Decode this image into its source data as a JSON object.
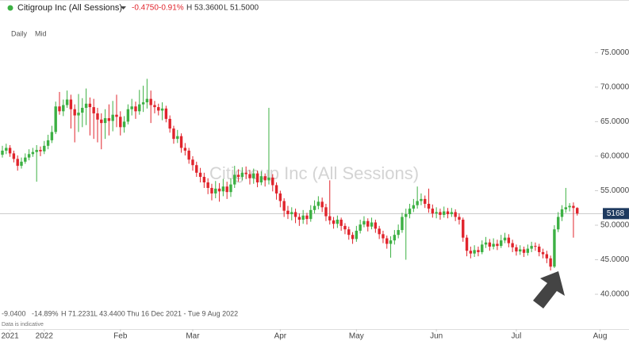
{
  "header": {
    "title": "Citigroup Inc (All Sessions)",
    "change": "-0.4750",
    "change_pct": "-0.91%",
    "high": "H 53.3600",
    "low": "L 51.5000"
  },
  "toolbar": {
    "interval": "Daily",
    "price_type": "Mid"
  },
  "footer": {
    "change": "-9.0400",
    "change_pct": "-14.89%",
    "high": "H 71.2231",
    "low": "L 43.4400",
    "range": "Thu 16 Dec 2021 - Tue 9 Aug 2022",
    "note": "Data is indicative"
  },
  "chart_data": {
    "type": "candlestick",
    "watermark": "Citigroup Inc (All Sessions)",
    "up_color": "#3cb043",
    "down_color": "#e0242c",
    "xlim": [
      -0.625,
      164.6
    ],
    "xticks": [
      {
        "value": 2,
        "label": "2021"
      },
      {
        "value": 11,
        "label": "2022"
      },
      {
        "value": 31,
        "label": "Feb"
      },
      {
        "value": 50,
        "label": "Mar"
      },
      {
        "value": 73,
        "label": "Apr"
      },
      {
        "value": 93,
        "label": "May"
      },
      {
        "value": 114,
        "label": "Jun"
      },
      {
        "value": 135,
        "label": "Jul"
      },
      {
        "value": 157,
        "label": "Aug"
      }
    ],
    "ylim": [
      37.25,
      79.4
    ],
    "yticks": [
      {
        "value": 40,
        "label": "40.0000"
      },
      {
        "value": 45,
        "label": "45.0000"
      },
      {
        "value": 50,
        "label": "50.0000"
      },
      {
        "value": 55,
        "label": "55.0000"
      },
      {
        "value": 60,
        "label": "60.0000"
      },
      {
        "value": 65,
        "label": "65.0000"
      },
      {
        "value": 70,
        "label": "70.0000"
      },
      {
        "value": 75,
        "label": "75.0000"
      }
    ],
    "last_price": {
      "value": 51.68,
      "label": "5168"
    },
    "open": [
      60.2,
      60.8,
      61.2,
      60.4,
      59.6,
      58.6,
      59.2,
      59.8,
      60.3,
      60.6,
      60.9,
      60.7,
      61.5,
      62.3,
      63.5,
      67.2,
      66.5,
      67.4,
      68.2,
      66.8,
      65.9,
      66.3,
      67.0,
      67.6,
      67.1,
      66.2,
      65.3,
      64.8,
      65.5,
      65.1,
      66.0,
      65.7,
      64.2,
      65.0,
      66.8,
      67.2,
      66.5,
      67.5,
      67.8,
      68.3,
      67.4,
      67.1,
      66.6,
      66.9,
      65.4,
      64.0,
      62.5,
      62.9,
      61.2,
      60.8,
      59.5,
      58.7,
      57.6,
      57.0,
      56.2,
      55.4,
      54.6,
      55.3,
      54.9,
      55.6,
      54.8,
      55.9,
      57.3,
      57.0,
      57.6,
      57.4,
      56.8,
      57.5,
      56.2,
      57.1,
      56.5,
      56.9,
      55.8,
      54.6,
      53.5,
      52.1,
      51.6,
      51.9,
      51.2,
      50.8,
      51.4,
      50.9,
      52.2,
      52.8,
      53.4,
      52.6,
      51.3,
      50.7,
      50.2,
      50.8,
      49.9,
      49.4,
      48.6,
      48.0,
      49.2,
      50.1,
      50.6,
      49.8,
      50.4,
      49.5,
      48.7,
      48.1,
      47.3,
      47.8,
      48.6,
      49.3,
      51.2,
      51.6,
      52.4,
      52.9,
      53.5,
      53.8,
      53.1,
      52.4,
      51.7,
      51.9,
      51.5,
      52.0,
      51.6,
      51.9,
      51.2,
      50.8,
      48.2,
      46.3,
      45.9,
      46.4,
      46.1,
      47.2,
      47.5,
      46.9,
      47.3,
      47.0,
      47.8,
      48.2,
      47.4,
      46.8,
      46.2,
      46.5,
      46.0,
      46.6,
      47.0,
      46.9,
      46.1,
      45.8,
      45.2,
      44.0,
      49.4,
      51.2,
      52.3,
      52.6,
      52.8,
      52.5
    ],
    "high": [
      61.5,
      61.8,
      61.6,
      60.8,
      60.1,
      59.8,
      60.4,
      61.0,
      61.2,
      61.6,
      61.4,
      62.2,
      63.1,
      64.4,
      67.9,
      69.3,
      68.2,
      69.5,
      68.9,
      67.5,
      69.0,
      68.4,
      69.8,
      68.5,
      68.3,
      67.0,
      66.2,
      66.8,
      67.5,
      68.0,
      68.9,
      66.5,
      65.8,
      67.5,
      68.3,
      67.9,
      69.6,
      70.2,
      71.2,
      69.5,
      68.0,
      67.6,
      67.8,
      67.3,
      65.9,
      64.4,
      63.8,
      63.3,
      61.9,
      61.2,
      60.0,
      59.2,
      58.3,
      57.6,
      56.8,
      56.0,
      56.4,
      56.1,
      56.7,
      56.3,
      56.8,
      58.6,
      58.1,
      58.4,
      58.5,
      58.0,
      58.2,
      57.9,
      57.8,
      57.5,
      67.0,
      57.4,
      56.2,
      55.0,
      53.9,
      52.8,
      52.6,
      52.4,
      51.7,
      52.2,
      51.8,
      52.9,
      53.6,
      54.2,
      54.0,
      53.1,
      56.5,
      51.2,
      51.4,
      51.1,
      50.3,
      49.8,
      49.0,
      49.9,
      50.8,
      51.3,
      51.0,
      51.1,
      50.8,
      49.9,
      49.2,
      48.5,
      48.4,
      49.3,
      50.1,
      51.8,
      52.4,
      53.1,
      53.8,
      55.6,
      54.6,
      54.3,
      55.3,
      53.0,
      52.6,
      52.4,
      52.7,
      52.5,
      52.5,
      52.3,
      51.7,
      51.1,
      48.6,
      46.9,
      47.1,
      46.9,
      47.8,
      48.3,
      48.0,
      48.1,
      47.9,
      48.6,
      48.9,
      48.7,
      47.9,
      47.2,
      47.1,
      46.9,
      47.2,
      47.6,
      47.5,
      47.3,
      46.6,
      46.3,
      45.6,
      50.0,
      51.9,
      52.9,
      55.4,
      53.2,
      53.3,
      52.6
    ],
    "low": [
      59.8,
      60.3,
      59.9,
      59.1,
      57.9,
      58.2,
      58.9,
      59.4,
      59.9,
      56.3,
      60.0,
      60.3,
      61.0,
      61.9,
      63.2,
      66.0,
      65.8,
      67.0,
      64.0,
      62.0,
      63.5,
      64.2,
      64.5,
      63.0,
      62.5,
      62.0,
      61.0,
      62.5,
      63.0,
      63.6,
      64.2,
      63.0,
      63.4,
      64.6,
      65.9,
      65.4,
      66.0,
      66.4,
      66.9,
      64.8,
      66.2,
      65.9,
      65.2,
      64.9,
      63.4,
      61.8,
      61.9,
      60.5,
      60.1,
      58.9,
      57.9,
      57.0,
      56.2,
      55.4,
      54.5,
      53.6,
      53.9,
      53.4,
      54.2,
      53.8,
      54.1,
      55.4,
      56.3,
      56.5,
      56.7,
      55.9,
      56.0,
      55.5,
      55.8,
      55.6,
      55.9,
      54.9,
      53.7,
      52.6,
      51.2,
      50.9,
      50.7,
      50.3,
      49.9,
      50.2,
      50.1,
      50.5,
      51.7,
      52.3,
      51.9,
      50.6,
      50.1,
      49.5,
      49.6,
      49.2,
      48.7,
      47.9,
      47.3,
      47.6,
      48.8,
      49.7,
      49.1,
      49.4,
      48.9,
      48.0,
      47.4,
      46.6,
      45.3,
      47.2,
      48.1,
      48.9,
      45.0,
      51.0,
      51.9,
      52.4,
      52.9,
      52.5,
      51.8,
      51.1,
      51.0,
      50.8,
      51.1,
      51.0,
      51.2,
      50.6,
      50.1,
      47.6,
      45.5,
      45.2,
      45.4,
      45.5,
      45.8,
      46.7,
      46.3,
      46.5,
      46.4,
      46.7,
      47.4,
      46.8,
      46.1,
      45.6,
      45.7,
      45.4,
      45.6,
      46.1,
      46.3,
      45.5,
      45.2,
      44.5,
      43.44,
      43.8,
      49.0,
      50.6,
      51.8,
      52.0,
      48.2,
      51.4
    ],
    "close": [
      60.8,
      61.2,
      60.4,
      59.6,
      58.6,
      59.2,
      59.8,
      60.3,
      60.6,
      60.9,
      60.7,
      61.5,
      62.3,
      63.5,
      67.2,
      66.5,
      67.4,
      68.2,
      66.8,
      65.9,
      66.3,
      67.0,
      67.6,
      67.1,
      66.2,
      65.3,
      64.8,
      65.5,
      65.1,
      66.0,
      65.7,
      64.2,
      65.0,
      66.8,
      67.2,
      66.5,
      67.5,
      67.8,
      68.3,
      67.4,
      67.1,
      66.6,
      66.9,
      65.4,
      64.0,
      62.5,
      62.9,
      61.2,
      60.8,
      59.5,
      58.7,
      57.6,
      57.0,
      56.2,
      55.4,
      54.6,
      55.3,
      54.9,
      55.6,
      54.8,
      55.9,
      57.3,
      57.0,
      57.6,
      57.4,
      56.8,
      57.5,
      56.2,
      57.1,
      56.5,
      56.9,
      55.8,
      54.6,
      53.5,
      52.1,
      51.6,
      51.9,
      51.2,
      50.8,
      51.4,
      50.9,
      52.2,
      52.8,
      53.4,
      52.6,
      51.3,
      50.7,
      50.2,
      50.8,
      49.9,
      49.4,
      48.6,
      48.0,
      49.2,
      50.1,
      50.6,
      49.8,
      50.4,
      49.5,
      48.7,
      48.1,
      47.3,
      47.8,
      48.6,
      49.3,
      51.2,
      51.6,
      52.4,
      52.9,
      53.5,
      53.8,
      53.1,
      52.4,
      51.7,
      51.9,
      51.5,
      52.0,
      51.6,
      51.9,
      51.2,
      50.8,
      48.2,
      46.3,
      45.9,
      46.4,
      46.1,
      47.2,
      47.5,
      46.9,
      47.3,
      47.0,
      47.8,
      48.2,
      47.4,
      46.8,
      46.2,
      46.5,
      46.0,
      46.6,
      47.0,
      46.9,
      46.1,
      45.8,
      45.2,
      44.0,
      49.4,
      51.2,
      52.3,
      52.6,
      52.8,
      52.5,
      51.7
    ]
  }
}
